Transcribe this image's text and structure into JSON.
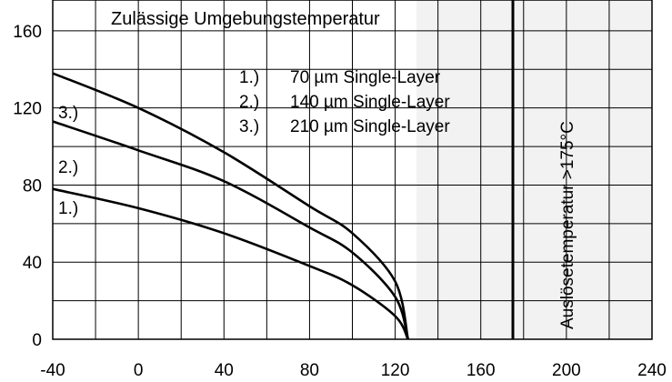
{
  "chart_data": {
    "type": "line",
    "title": "Zulässige Umgebungstemperatur",
    "xlabel": "",
    "ylabel": "",
    "xlim": [
      -40,
      240
    ],
    "ylim": [
      0,
      176
    ],
    "x_ticks": [
      -40,
      0,
      40,
      80,
      120,
      160,
      200,
      240
    ],
    "x_tick_labels": [
      "-40",
      "0",
      "40",
      "80",
      "120",
      "160",
      "200",
      "240"
    ],
    "y_ticks": [
      0,
      40,
      80,
      120,
      160
    ],
    "y_tick_labels": [
      "0",
      "40",
      "80",
      "120",
      "160"
    ],
    "grid": true,
    "shaded_region": {
      "from": 130,
      "to": 240
    },
    "threshold_line": {
      "x": 175,
      "label": "Auslösetemperatur >175°C"
    },
    "legend": {
      "placement": "top-right",
      "entries": [
        {
          "marker": "1.)",
          "text": "70 µm Single-Layer"
        },
        {
          "marker": "2.)",
          "text": "140 µm Single-Layer"
        },
        {
          "marker": "3.)",
          "text": "210 µm Single-Layer"
        }
      ]
    },
    "series": [
      {
        "label": "1.)",
        "x": [
          -40,
          0,
          40,
          80,
          100,
          120,
          126
        ],
        "y": [
          78,
          68,
          55,
          38,
          28,
          12,
          0
        ]
      },
      {
        "label": "2.)",
        "x": [
          -40,
          0,
          40,
          80,
          100,
          120,
          126
        ],
        "y": [
          113,
          98,
          82,
          58,
          45,
          22,
          0
        ]
      },
      {
        "label": "3.)",
        "x": [
          -40,
          0,
          40,
          80,
          100,
          120,
          126
        ],
        "y": [
          138,
          120,
          97,
          69,
          55,
          30,
          0
        ]
      }
    ]
  }
}
